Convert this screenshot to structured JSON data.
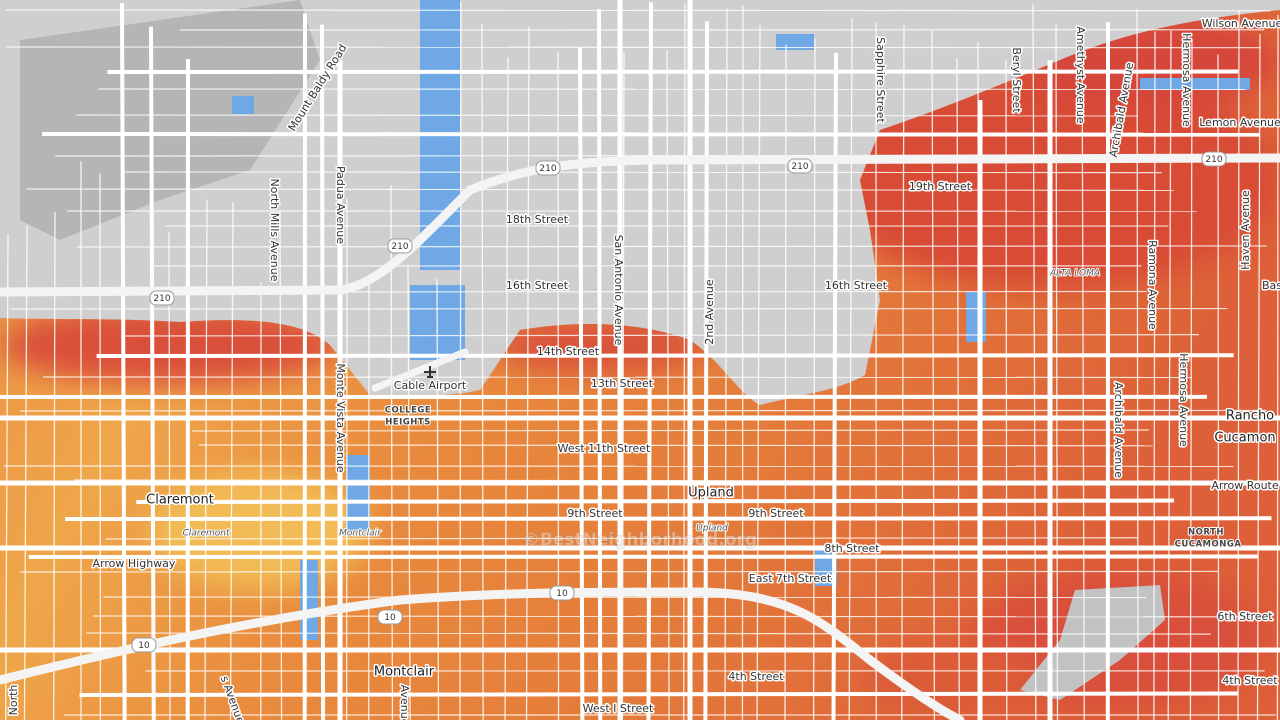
{
  "map": {
    "labels": [
      "Mount Baldy Road",
      "North Mills Avenue",
      "Padua Avenue",
      "18th Street",
      "San Antonio Avenue",
      "2nd Avenue",
      "16th Street",
      "16th Street",
      "14th Street",
      "13th Street",
      "Cable Airport",
      "COLLEGE",
      "HEIGHTS",
      "Monte Vista Avenue",
      "West 11th Street",
      "Upland",
      "Claremont",
      "Claremont",
      "Montclair",
      "Upland",
      "9th Street",
      "9th Street",
      "8th Street",
      "East 7th Street",
      "Arrow Highway",
      "Montclair",
      "4th Street",
      "West I Street",
      "North",
      "s Avenue",
      "Avenue",
      "Sapphire Street",
      "Beryl Street",
      "Amethyst Avenue",
      "Archibald Avenue",
      "Hermosa Avenue",
      "Wilson Avenue",
      "Lemon Avenue",
      "19th Street",
      "ALTA LOMA",
      "Ramona Avenue",
      "Haven Avenue",
      "Bas",
      "Archibald Avenue",
      "Hermosa Avenue",
      "Rancho",
      "Cucamon",
      "Arrow Route",
      "NORTH",
      "CUCAMONGA",
      "6th Street",
      "4th Street",
      "©BestNeighborhood.org"
    ],
    "shields": [
      "210",
      "210",
      "210",
      "210",
      "210",
      "10",
      "10",
      "10"
    ]
  }
}
